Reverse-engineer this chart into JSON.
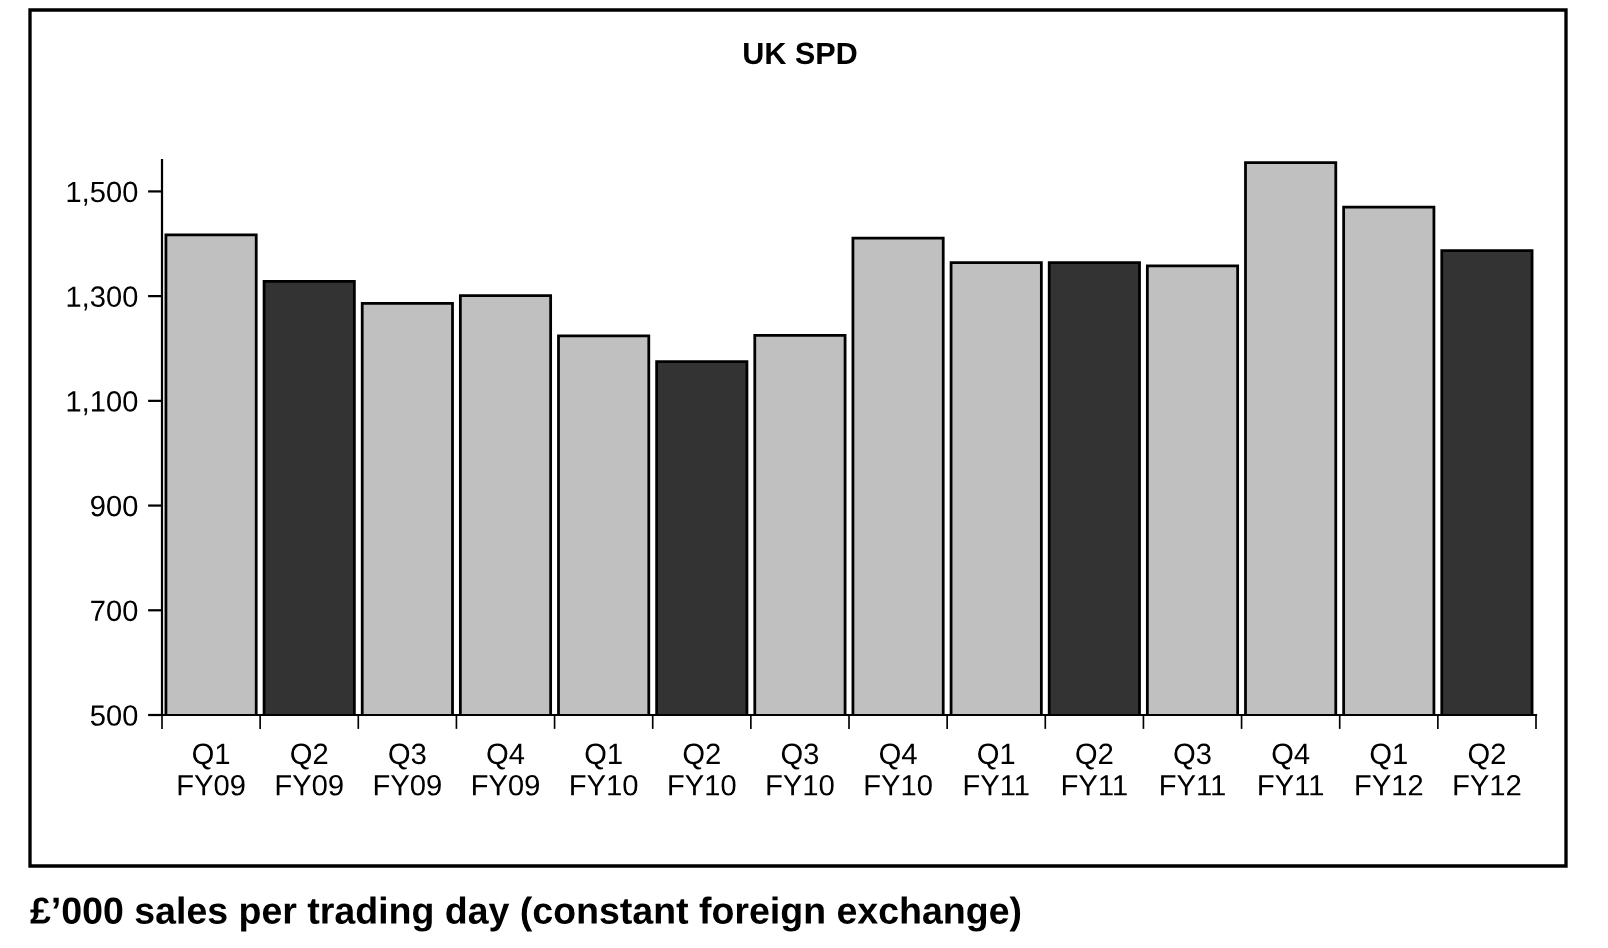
{
  "chart_data": {
    "type": "bar",
    "title": "UK SPD",
    "categories": [
      "Q1\nFY09",
      "Q2\nFY09",
      "Q3\nFY09",
      "Q4\nFY09",
      "Q1\nFY10",
      "Q2\nFY10",
      "Q3\nFY10",
      "Q4\nFY10",
      "Q1\nFY11",
      "Q2\nFY11",
      "Q3\nFY11",
      "Q4\nFY11",
      "Q1\nFY12",
      "Q2\nFY12"
    ],
    "values": [
      1417,
      1328,
      1286,
      1301,
      1224,
      1175,
      1225,
      1411,
      1364,
      1364,
      1358,
      1555,
      1470,
      1387
    ],
    "colors": [
      "#c0c0c0",
      "#333333",
      "#c0c0c0",
      "#c0c0c0",
      "#c0c0c0",
      "#333333",
      "#c0c0c0",
      "#c0c0c0",
      "#c0c0c0",
      "#333333",
      "#c0c0c0",
      "#c0c0c0",
      "#c0c0c0",
      "#333333"
    ],
    "ylim": [
      500,
      1560
    ],
    "yticks": [
      {
        "value": 500,
        "label": "500"
      },
      {
        "value": 700,
        "label": "700"
      },
      {
        "value": 900,
        "label": "900"
      },
      {
        "value": 1100,
        "label": "1,100"
      },
      {
        "value": 1300,
        "label": "1,300"
      },
      {
        "value": 1500,
        "label": "1,500"
      }
    ],
    "grid": false,
    "legend": false,
    "annotations": [
      "£’000 sales per trading day (constant foreign exchange)"
    ]
  }
}
